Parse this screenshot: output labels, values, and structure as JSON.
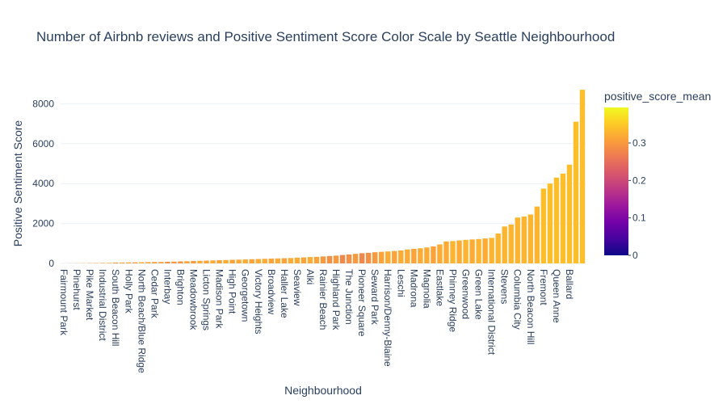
{
  "chart_data": {
    "type": "bar",
    "title": "Number of Airbnb reviews and Positive Sentiment Score Color Scale by Seattle Neighbourhood",
    "x_label": "Neighbourhood",
    "y_label": "Positive Sentiment Score",
    "categories": [
      "Fairmount Park",
      null,
      "Pinehurst",
      null,
      "Pike Market",
      null,
      "Industrial District",
      null,
      "South Beacon Hill",
      null,
      "Holly Park",
      null,
      "North Beach/Blue Ridge",
      null,
      "Cedar Park",
      null,
      "Interbay",
      null,
      "Brighton",
      null,
      "Meadowbrook",
      null,
      "Licton Springs",
      null,
      "Madison Park",
      null,
      "High Point",
      null,
      "Georgetown",
      null,
      "Victory Heights",
      null,
      "Broadview",
      null,
      "Haller Lake",
      null,
      "Seaview",
      null,
      "Alki",
      null,
      "Rainier Beach",
      null,
      "Highland Park",
      null,
      "The Junction",
      null,
      "Pioneer Square",
      null,
      "Seward Park",
      null,
      "Harrison/Denny-Blaine",
      null,
      "Leschi",
      null,
      "Madrona",
      null,
      "Magnolia",
      null,
      "Eastlake",
      null,
      "Phinney Ridge",
      null,
      "Greenwood",
      null,
      "Green Lake",
      null,
      "International District",
      null,
      "Stevens",
      null,
      "Columbia City",
      null,
      "North Beacon Hill",
      null,
      "Fremont",
      null,
      "Queen Anne",
      null,
      "Ballard",
      null,
      null
    ],
    "values": [
      2,
      5,
      8,
      10,
      15,
      20,
      25,
      30,
      40,
      45,
      50,
      55,
      60,
      65,
      70,
      75,
      80,
      90,
      100,
      110,
      120,
      130,
      140,
      150,
      160,
      170,
      180,
      190,
      200,
      210,
      220,
      230,
      240,
      250,
      260,
      270,
      290,
      300,
      320,
      330,
      350,
      370,
      390,
      420,
      450,
      480,
      510,
      530,
      560,
      580,
      600,
      620,
      650,
      700,
      730,
      760,
      800,
      850,
      950,
      1100,
      1120,
      1150,
      1180,
      1200,
      1220,
      1250,
      1280,
      1500,
      1850,
      1950,
      2300,
      2350,
      2450,
      2850,
      3750,
      4000,
      4300,
      4500,
      4950,
      7100,
      8700
    ],
    "color_values": [
      0.31,
      0.3,
      0.31,
      0.32,
      0.3,
      0.31,
      0.3,
      0.32,
      0.3,
      0.31,
      0.31,
      0.3,
      0.32,
      0.31,
      0.3,
      0.31,
      0.29,
      0.3,
      0.29,
      0.31,
      0.3,
      0.32,
      0.31,
      0.32,
      0.31,
      0.32,
      0.31,
      0.32,
      0.32,
      0.31,
      0.32,
      0.32,
      0.31,
      0.32,
      0.31,
      0.32,
      0.32,
      0.31,
      0.32,
      0.31,
      0.3,
      0.29,
      0.3,
      0.28,
      0.29,
      0.3,
      0.28,
      0.29,
      0.3,
      0.31,
      0.32,
      0.31,
      0.32,
      0.32,
      0.31,
      0.32,
      0.32,
      0.31,
      0.32,
      0.32,
      0.33,
      0.32,
      0.33,
      0.32,
      0.33,
      0.32,
      0.33,
      0.33,
      0.33,
      0.33,
      0.33,
      0.33,
      0.33,
      0.33,
      0.34,
      0.34,
      0.34,
      0.34,
      0.34,
      0.34,
      0.34
    ],
    "ylim": [
      0,
      9150
    ],
    "yticks": [
      0,
      2000,
      4000,
      6000,
      8000
    ],
    "grid": true,
    "colorbar": {
      "title": "positive_score_mean",
      "lim": [
        0,
        0.395
      ],
      "ticks": [
        0,
        0.1,
        0.2,
        0.3
      ],
      "colorscale": [
        "#0d0887",
        "#46039f",
        "#7201a8",
        "#9c179e",
        "#bd3786",
        "#d8576b",
        "#ed7953",
        "#fb9f3a",
        "#fdca26",
        "#f0f921"
      ]
    }
  }
}
